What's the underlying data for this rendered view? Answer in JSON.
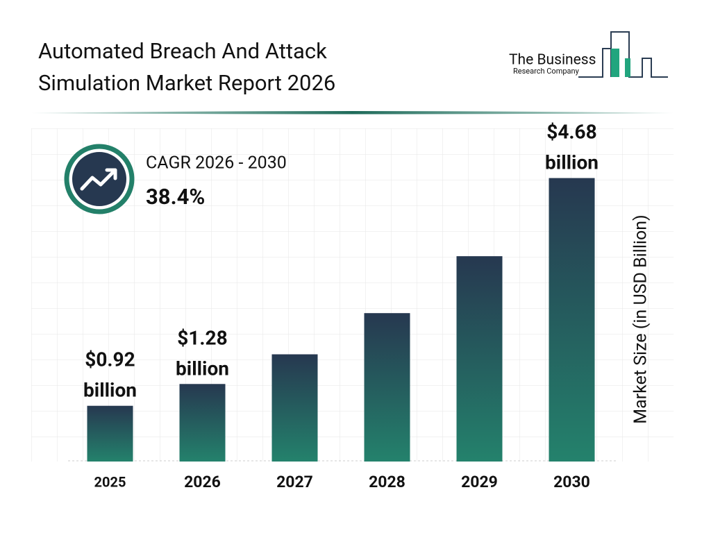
{
  "chart_data": {
    "type": "bar",
    "title": [
      "Automated Breach And Attack",
      "Simulation Market Report 2026"
    ],
    "brand": [
      "The Business",
      "Research Company"
    ],
    "cagr_label": "CAGR 2026 - 2030",
    "cagr_value": "38.4%",
    "y_axis_label": "Market Size (in USD Billion)",
    "categories": [
      "2025",
      "2026",
      "2027",
      "2028",
      "2029",
      "2030"
    ],
    "values": [
      0.92,
      1.28,
      1.77,
      2.45,
      3.39,
      4.68
    ],
    "value_labels": [
      "$0.92 billion",
      "$1.28 billion",
      null,
      null,
      null,
      "$4.68 billion"
    ],
    "color": [
      "#263850",
      "#24826c"
    ],
    "ylim": [
      0,
      5.5
    ]
  }
}
